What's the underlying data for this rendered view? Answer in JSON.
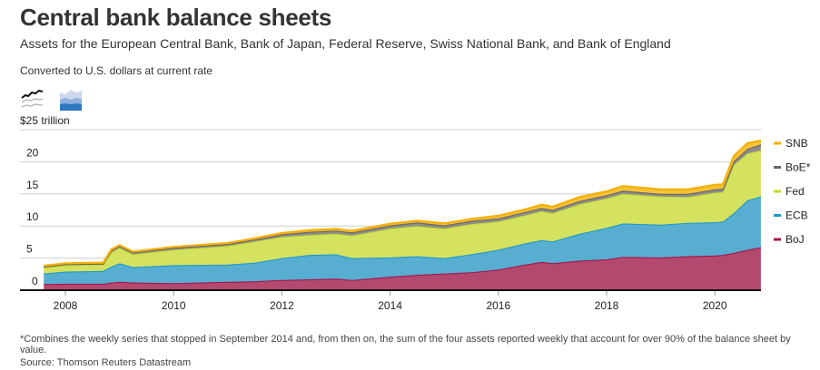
{
  "header": {
    "title": "Central bank balance sheets",
    "subtitle": "Assets for the European Central Bank, Bank of Japan, Federal Reserve, Swiss National Bank, and Bank of England",
    "note": "Converted to U.S. dollars at current rate"
  },
  "view_toggle": {
    "options": [
      "line-chart-icon",
      "stacked-area-icon"
    ],
    "selected": "stacked-area-icon"
  },
  "footer": {
    "footnote": "*Combines the weekly series that stopped in September 2014 and, from then on, the sum of the four assets reported weekly that account for over 90% of the balance sheet by value.",
    "source": "Source: Thomson Reuters Datastream"
  },
  "chart_data": {
    "type": "area",
    "stacked": true,
    "ylabel_top": "$25 trillion",
    "ylim": [
      0,
      25
    ],
    "yticks": [
      0,
      5,
      10,
      15,
      20,
      25
    ],
    "ytick_labels": [
      "0",
      "5",
      "10",
      "15",
      "20",
      "$25 trillion"
    ],
    "xlim": [
      2007.6,
      2020.85
    ],
    "xticks": [
      2008,
      2010,
      2012,
      2014,
      2016,
      2018,
      2020
    ],
    "xtick_labels": [
      "2008",
      "2010",
      "2012",
      "2014",
      "2016",
      "2018",
      "2020"
    ],
    "grid": true,
    "legend_position": "right",
    "x": [
      2007.6,
      2008.0,
      2008.7,
      2008.85,
      2009.0,
      2009.25,
      2010.0,
      2011.0,
      2011.5,
      2012.0,
      2012.5,
      2013.0,
      2013.3,
      2014.0,
      2014.5,
      2015.0,
      2015.5,
      2016.0,
      2016.5,
      2016.8,
      2017.0,
      2017.5,
      2018.0,
      2018.3,
      2019.0,
      2019.5,
      2020.0,
      2020.15,
      2020.35,
      2020.6,
      2020.85
    ],
    "series": [
      {
        "name": "BoJ",
        "fill": "#b3496f",
        "line": "#a3154d",
        "values": [
          0.95,
          1.0,
          1.0,
          1.2,
          1.3,
          1.2,
          1.1,
          1.3,
          1.4,
          1.6,
          1.7,
          1.8,
          1.6,
          2.1,
          2.4,
          2.6,
          2.8,
          3.2,
          4.0,
          4.4,
          4.2,
          4.6,
          4.8,
          5.2,
          5.1,
          5.3,
          5.4,
          5.5,
          5.8,
          6.3,
          6.7
        ]
      },
      {
        "name": "ECB",
        "fill": "#58aed1",
        "line": "#2199cc",
        "values": [
          1.65,
          1.9,
          2.0,
          2.5,
          2.9,
          2.4,
          2.8,
          2.7,
          2.9,
          3.4,
          3.8,
          3.8,
          3.4,
          3.0,
          2.9,
          2.4,
          2.8,
          3.1,
          3.3,
          3.4,
          3.4,
          4.2,
          4.9,
          5.2,
          5.1,
          5.2,
          5.2,
          5.2,
          6.2,
          7.7,
          7.9
        ]
      },
      {
        "name": "Fed",
        "fill": "#d5e25f",
        "line": "#c4d92e",
        "values": [
          0.9,
          1.0,
          1.0,
          2.2,
          2.4,
          2.0,
          2.4,
          2.9,
          3.3,
          3.3,
          3.1,
          3.2,
          3.5,
          4.5,
          4.7,
          4.6,
          4.7,
          4.4,
          4.4,
          4.5,
          4.4,
          4.6,
          4.6,
          4.6,
          4.4,
          4.0,
          4.6,
          4.6,
          7.5,
          7.3,
          7.2
        ]
      },
      {
        "name": "BoE*",
        "fill": "#8c8c8c",
        "line": "#666666",
        "values": [
          0.15,
          0.15,
          0.15,
          0.3,
          0.3,
          0.3,
          0.3,
          0.3,
          0.3,
          0.4,
          0.5,
          0.5,
          0.5,
          0.5,
          0.55,
          0.5,
          0.5,
          0.5,
          0.5,
          0.5,
          0.5,
          0.5,
          0.5,
          0.5,
          0.4,
          0.5,
          0.5,
          0.5,
          0.6,
          0.7,
          0.9
        ]
      },
      {
        "name": "SNB",
        "fill": "#f7c23a",
        "line": "#f5b000",
        "values": [
          0.15,
          0.15,
          0.15,
          0.15,
          0.1,
          0.1,
          0.15,
          0.15,
          0.2,
          0.2,
          0.25,
          0.25,
          0.25,
          0.25,
          0.25,
          0.3,
          0.3,
          0.4,
          0.4,
          0.5,
          0.5,
          0.6,
          0.6,
          0.7,
          0.7,
          0.7,
          0.7,
          0.7,
          0.8,
          0.9,
          0.6
        ]
      }
    ]
  }
}
